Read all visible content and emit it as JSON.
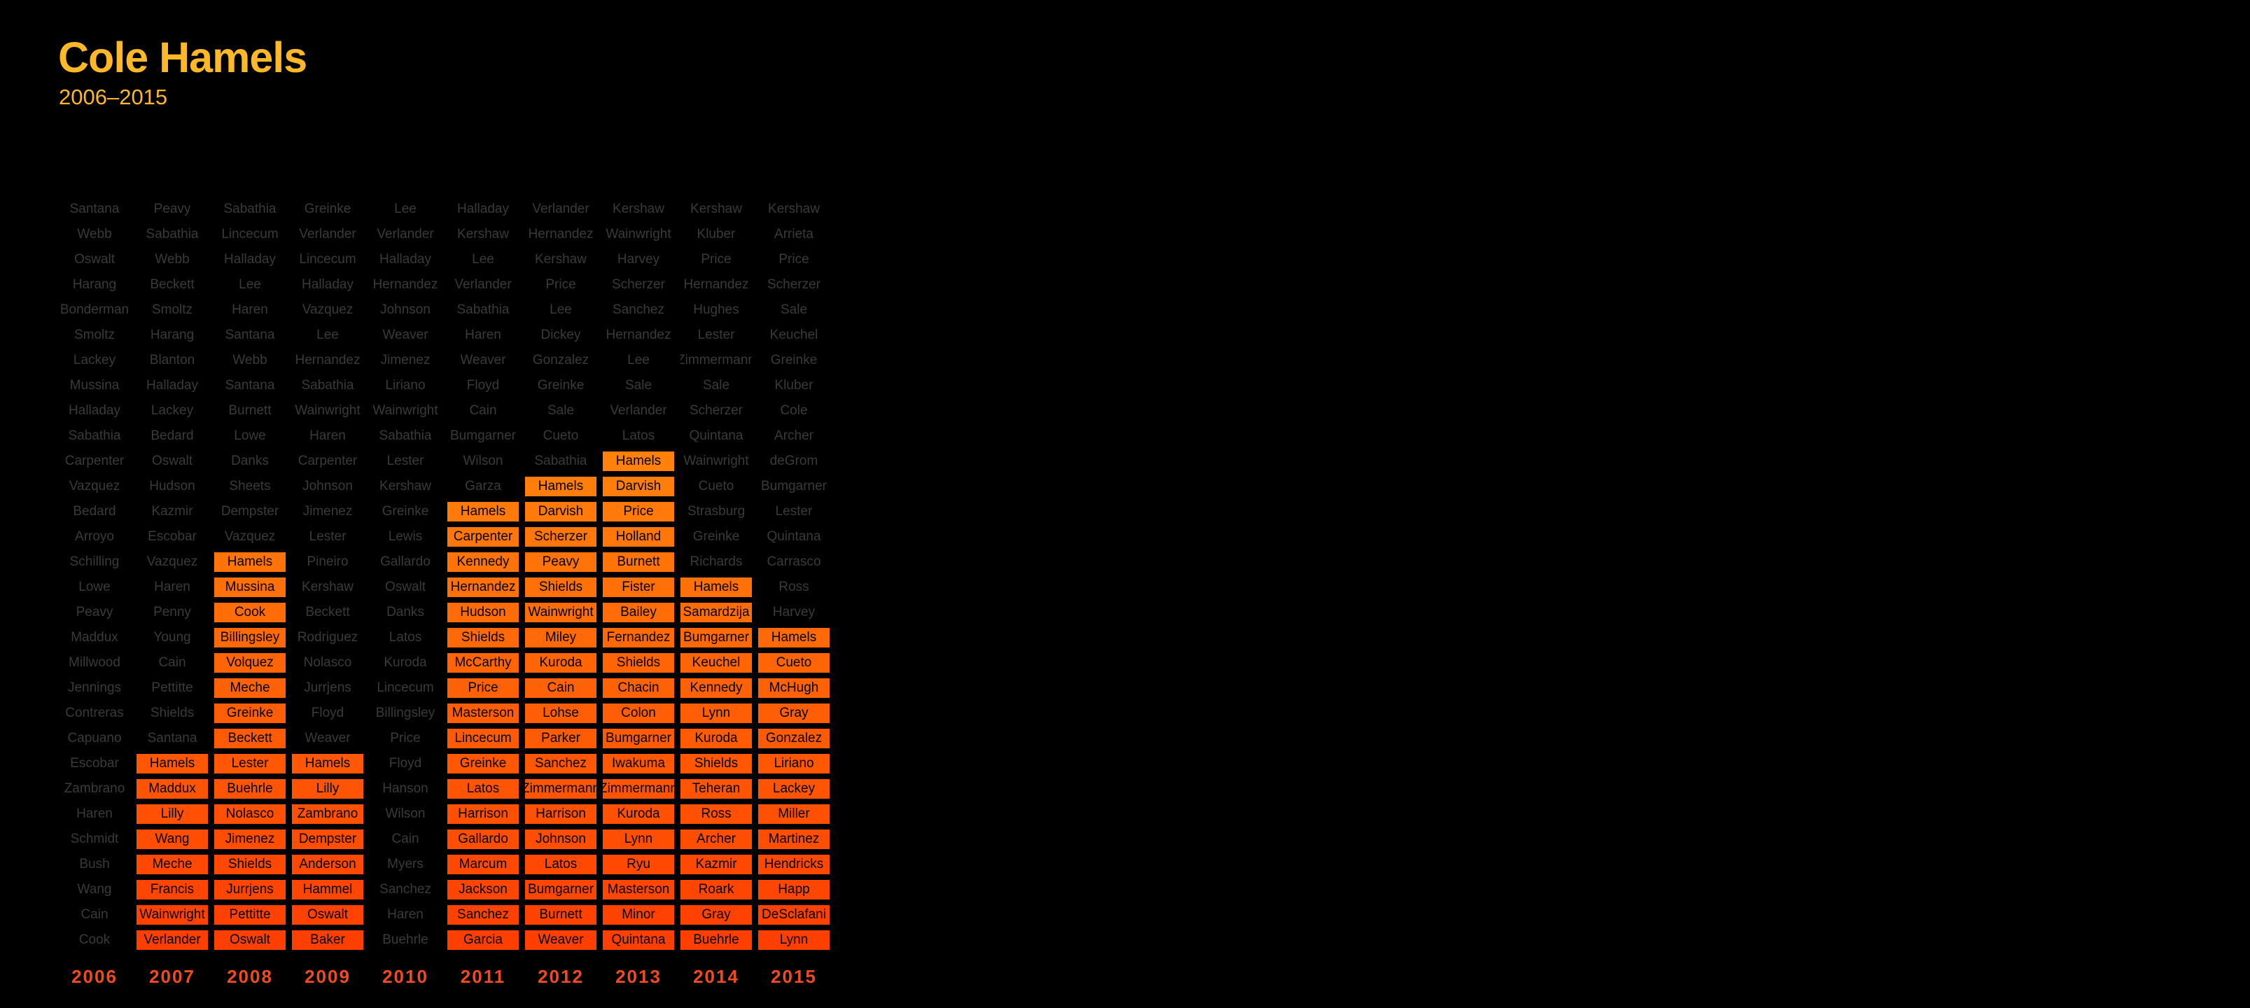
{
  "header": {
    "title": "Cole Hamels",
    "subtitle": "2006–2015"
  },
  "colors": {
    "title": "#FDB827",
    "highlight_top": "#FFA412",
    "highlight_bottom": "#FF3F00",
    "dim_text": "#3a3a3a",
    "year_label": "#F04A1E"
  },
  "chart_data": {
    "type": "table",
    "highlight_name": "Hamels",
    "columns": [
      {
        "year": "2006",
        "pitchers": [
          "Santana",
          "Webb",
          "Oswalt",
          "Harang",
          "Bonderman",
          "Smoltz",
          "Lackey",
          "Mussina",
          "Halladay",
          "Sabathia",
          "Carpenter",
          "Vazquez",
          "Bedard",
          "Arroyo",
          "Schilling",
          "Lowe",
          "Peavy",
          "Maddux",
          "Millwood",
          "Jennings",
          "Contreras",
          "Capuano",
          "Escobar",
          "Zambrano",
          "Haren",
          "Schmidt",
          "Bush",
          "Wang",
          "Cain",
          "Cook"
        ],
        "highlight_from": null
      },
      {
        "year": "2007",
        "pitchers": [
          "Peavy",
          "Sabathia",
          "Webb",
          "Beckett",
          "Smoltz",
          "Harang",
          "Blanton",
          "Halladay",
          "Lackey",
          "Bedard",
          "Oswalt",
          "Hudson",
          "Kazmir",
          "Escobar",
          "Vazquez",
          "Haren",
          "Penny",
          "Young",
          "Cain",
          "Pettitte",
          "Shields",
          "Santana",
          "Hamels",
          "Maddux",
          "Lilly",
          "Wang",
          "Meche",
          "Francis",
          "Wainwright",
          "Verlander"
        ],
        "highlight_from": 22
      },
      {
        "year": "2008",
        "pitchers": [
          "Sabathia",
          "Lincecum",
          "Halladay",
          "Lee",
          "Haren",
          "Santana",
          "Webb",
          "Santana",
          "Burnett",
          "Lowe",
          "Danks",
          "Sheets",
          "Dempster",
          "Vazquez",
          "Hamels",
          "Mussina",
          "Cook",
          "Billingsley",
          "Volquez",
          "Meche",
          "Greinke",
          "Beckett",
          "Lester",
          "Buehrle",
          "Nolasco",
          "Jimenez",
          "Shields",
          "Jurrjens",
          "Pettitte",
          "Oswalt"
        ],
        "highlight_from": 14
      },
      {
        "year": "2009",
        "pitchers": [
          "Greinke",
          "Verlander",
          "Lincecum",
          "Halladay",
          "Vazquez",
          "Lee",
          "Hernandez",
          "Sabathia",
          "Wainwright",
          "Haren",
          "Carpenter",
          "Johnson",
          "Jimenez",
          "Lester",
          "Pineiro",
          "Kershaw",
          "Beckett",
          "Rodriguez",
          "Nolasco",
          "Jurrjens",
          "Floyd",
          "Weaver",
          "Hamels",
          "Lilly",
          "Zambrano",
          "Dempster",
          "Anderson",
          "Hammel",
          "Oswalt",
          "Baker"
        ],
        "highlight_from": 22
      },
      {
        "year": "2010",
        "pitchers": [
          "Lee",
          "Verlander",
          "Halladay",
          "Hernandez",
          "Johnson",
          "Weaver",
          "Jimenez",
          "Liriano",
          "Wainwright",
          "Sabathia",
          "Lester",
          "Kershaw",
          "Greinke",
          "Lewis",
          "Gallardo",
          "Oswalt",
          "Danks",
          "Latos",
          "Kuroda",
          "Lincecum",
          "Billingsley",
          "Price",
          "Floyd",
          "Hanson",
          "Wilson",
          "Cain",
          "Myers",
          "Sanchez",
          "Haren",
          "Buehrle"
        ],
        "highlight_from": null
      },
      {
        "year": "2011",
        "pitchers": [
          "Halladay",
          "Kershaw",
          "Lee",
          "Verlander",
          "Sabathia",
          "Haren",
          "Weaver",
          "Floyd",
          "Cain",
          "Bumgarner",
          "Wilson",
          "Garza",
          "Hamels",
          "Carpenter",
          "Kennedy",
          "Hernandez",
          "Hudson",
          "Shields",
          "McCarthy",
          "Price",
          "Masterson",
          "Lincecum",
          "Greinke",
          "Latos",
          "Harrison",
          "Gallardo",
          "Marcum",
          "Jackson",
          "Sanchez",
          "Garcia"
        ],
        "highlight_from": 12
      },
      {
        "year": "2012",
        "pitchers": [
          "Verlander",
          "Hernandez",
          "Kershaw",
          "Price",
          "Lee",
          "Dickey",
          "Gonzalez",
          "Greinke",
          "Sale",
          "Cueto",
          "Sabathia",
          "Hamels",
          "Darvish",
          "Scherzer",
          "Peavy",
          "Shields",
          "Wainwright",
          "Miley",
          "Kuroda",
          "Cain",
          "Lohse",
          "Parker",
          "Sanchez",
          "Zimmermann",
          "Harrison",
          "Johnson",
          "Latos",
          "Bumgarner",
          "Burnett",
          "Weaver"
        ],
        "highlight_from": 11
      },
      {
        "year": "2013",
        "pitchers": [
          "Kershaw",
          "Wainwright",
          "Harvey",
          "Scherzer",
          "Sanchez",
          "Hernandez",
          "Lee",
          "Sale",
          "Verlander",
          "Latos",
          "Hamels",
          "Darvish",
          "Price",
          "Holland",
          "Burnett",
          "Fister",
          "Bailey",
          "Fernandez",
          "Shields",
          "Chacin",
          "Colon",
          "Bumgarner",
          "Iwakuma",
          "Zimmermann",
          "Kuroda",
          "Lynn",
          "Ryu",
          "Masterson",
          "Minor",
          "Quintana"
        ],
        "highlight_from": 10
      },
      {
        "year": "2014",
        "pitchers": [
          "Kershaw",
          "Kluber",
          "Price",
          "Hernandez",
          "Hughes",
          "Lester",
          "Zimmermann",
          "Sale",
          "Scherzer",
          "Quintana",
          "Wainwright",
          "Cueto",
          "Strasburg",
          "Greinke",
          "Richards",
          "Hamels",
          "Samardzija",
          "Bumgarner",
          "Keuchel",
          "Kennedy",
          "Lynn",
          "Kuroda",
          "Shields",
          "Teheran",
          "Ross",
          "Archer",
          "Kazmir",
          "Roark",
          "Gray",
          "Buehrle"
        ],
        "highlight_from": 15
      },
      {
        "year": "2015",
        "pitchers": [
          "Kershaw",
          "Arrieta",
          "Price",
          "Scherzer",
          "Sale",
          "Keuchel",
          "Greinke",
          "Kluber",
          "Cole",
          "Archer",
          "deGrom",
          "Bumgarner",
          "Lester",
          "Quintana",
          "Carrasco",
          "Ross",
          "Harvey",
          "Hamels",
          "Cueto",
          "McHugh",
          "Gray",
          "Gonzalez",
          "Liriano",
          "Lackey",
          "Miller",
          "Martinez",
          "Hendricks",
          "Happ",
          "DeSclafani",
          "Lynn"
        ],
        "highlight_from": 17
      }
    ]
  }
}
